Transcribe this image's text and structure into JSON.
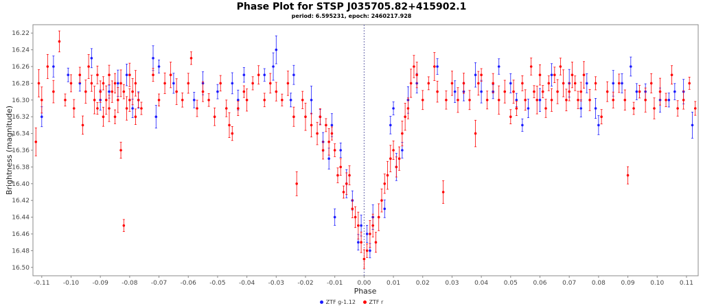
{
  "chart_data": {
    "type": "scatter",
    "title": "Phase Plot for STSP J035705.82+415902.1",
    "subtitle": "period: 6.595231, epoch: 2460217.928",
    "xlabel": "Phase",
    "ylabel": "Brightness (magnitude)",
    "xlim": [
      -0.113,
      0.114
    ],
    "ylim": [
      16.21,
      16.51
    ],
    "y_inverted": true,
    "x_ticks": [
      "-0.11",
      "-0.10",
      "-0.09",
      "-0.08",
      "-0.07",
      "-0.06",
      "-0.05",
      "-0.04",
      "-0.03",
      "-0.02",
      "-0.01",
      "0.00",
      "0.01",
      "0.02",
      "0.03",
      "0.04",
      "0.05",
      "0.06",
      "0.07",
      "0.08",
      "0.09",
      "0.10",
      "0.11"
    ],
    "y_ticks": [
      "16.22",
      "16.24",
      "16.26",
      "16.28",
      "16.30",
      "16.32",
      "16.34",
      "16.36",
      "16.38",
      "16.40",
      "16.42",
      "16.44",
      "16.46",
      "16.48",
      "16.50"
    ],
    "reference_line_x": 0.0,
    "legend_position": "bottom-center",
    "grid": false,
    "series": [
      {
        "name": "ZTF g-1.12",
        "color": "#1a1aff",
        "points": [
          [
            -0.11,
            16.32
          ],
          [
            -0.106,
            16.26
          ],
          [
            -0.101,
            16.27
          ],
          [
            -0.097,
            16.28
          ],
          [
            -0.093,
            16.25
          ],
          [
            -0.09,
            16.3
          ],
          [
            -0.087,
            16.29
          ],
          [
            -0.084,
            16.28
          ],
          [
            -0.081,
            16.27
          ],
          [
            -0.079,
            16.31
          ],
          [
            -0.077,
            16.3
          ],
          [
            -0.072,
            16.25
          ],
          [
            -0.071,
            16.32
          ],
          [
            -0.07,
            16.26
          ],
          [
            -0.065,
            16.28
          ],
          [
            -0.058,
            16.3
          ],
          [
            -0.055,
            16.28
          ],
          [
            -0.05,
            16.29
          ],
          [
            -0.045,
            16.28
          ],
          [
            -0.043,
            16.3
          ],
          [
            -0.041,
            16.27
          ],
          [
            -0.034,
            16.27
          ],
          [
            -0.031,
            16.26
          ],
          [
            -0.03,
            16.24
          ],
          [
            -0.025,
            16.3
          ],
          [
            -0.024,
            16.27
          ],
          [
            -0.018,
            16.3
          ],
          [
            -0.015,
            16.32
          ],
          [
            -0.014,
            16.35
          ],
          [
            -0.012,
            16.37
          ],
          [
            -0.011,
            16.33
          ],
          [
            -0.01,
            16.44
          ],
          [
            -0.008,
            16.36
          ],
          [
            -0.006,
            16.4
          ],
          [
            -0.004,
            16.42
          ],
          [
            -0.002,
            16.47
          ],
          [
            -0.001,
            16.45
          ],
          [
            0.001,
            16.46
          ],
          [
            0.002,
            16.48
          ],
          [
            0.003,
            16.44
          ],
          [
            0.007,
            16.43
          ],
          [
            0.009,
            16.33
          ],
          [
            0.01,
            16.31
          ],
          [
            0.011,
            16.38
          ],
          [
            0.013,
            16.36
          ],
          [
            0.015,
            16.3
          ],
          [
            0.018,
            16.28
          ],
          [
            0.025,
            16.26
          ],
          [
            0.031,
            16.29
          ],
          [
            0.034,
            16.29
          ],
          [
            0.038,
            16.27
          ],
          [
            0.04,
            16.29
          ],
          [
            0.044,
            16.29
          ],
          [
            0.046,
            16.26
          ],
          [
            0.05,
            16.28
          ],
          [
            0.052,
            16.3
          ],
          [
            0.054,
            16.33
          ],
          [
            0.056,
            16.31
          ],
          [
            0.06,
            16.3
          ],
          [
            0.064,
            16.27
          ],
          [
            0.07,
            16.28
          ],
          [
            0.074,
            16.31
          ],
          [
            0.076,
            16.28
          ],
          [
            0.079,
            16.31
          ],
          [
            0.08,
            16.33
          ],
          [
            0.085,
            16.28
          ],
          [
            0.088,
            16.28
          ],
          [
            0.091,
            16.26
          ],
          [
            0.093,
            16.29
          ],
          [
            0.096,
            16.29
          ],
          [
            0.101,
            16.3
          ],
          [
            0.104,
            16.3
          ],
          [
            0.106,
            16.29
          ],
          [
            0.109,
            16.29
          ],
          [
            0.112,
            16.33
          ]
        ]
      },
      {
        "name": "ZTF r",
        "color": "#ff0000",
        "points": [
          [
            -0.112,
            16.35
          ],
          [
            -0.111,
            16.28
          ],
          [
            -0.11,
            16.3
          ],
          [
            -0.108,
            16.26
          ],
          [
            -0.106,
            16.29
          ],
          [
            -0.104,
            16.23
          ],
          [
            -0.102,
            16.3
          ],
          [
            -0.1,
            16.28
          ],
          [
            -0.099,
            16.31
          ],
          [
            -0.097,
            16.27
          ],
          [
            -0.096,
            16.33
          ],
          [
            -0.095,
            16.29
          ],
          [
            -0.094,
            16.26
          ],
          [
            -0.093,
            16.28
          ],
          [
            -0.092,
            16.3
          ],
          [
            -0.091,
            16.31
          ],
          [
            -0.091,
            16.27
          ],
          [
            -0.09,
            16.29
          ],
          [
            -0.089,
            16.32
          ],
          [
            -0.089,
            16.28
          ],
          [
            -0.088,
            16.3
          ],
          [
            -0.087,
            16.27
          ],
          [
            -0.087,
            16.31
          ],
          [
            -0.086,
            16.29
          ],
          [
            -0.085,
            16.28
          ],
          [
            -0.085,
            16.32
          ],
          [
            -0.084,
            16.3
          ],
          [
            -0.083,
            16.28
          ],
          [
            -0.083,
            16.36
          ],
          [
            -0.082,
            16.45
          ],
          [
            -0.082,
            16.29
          ],
          [
            -0.081,
            16.31
          ],
          [
            -0.08,
            16.27
          ],
          [
            -0.08,
            16.3
          ],
          [
            -0.079,
            16.29
          ],
          [
            -0.078,
            16.32
          ],
          [
            -0.078,
            16.28
          ],
          [
            -0.077,
            16.3
          ],
          [
            -0.076,
            16.31
          ],
          [
            -0.072,
            16.27
          ],
          [
            -0.07,
            16.3
          ],
          [
            -0.068,
            16.28
          ],
          [
            -0.066,
            16.27
          ],
          [
            -0.064,
            16.29
          ],
          [
            -0.062,
            16.3
          ],
          [
            -0.06,
            16.28
          ],
          [
            -0.059,
            16.25
          ],
          [
            -0.057,
            16.31
          ],
          [
            -0.055,
            16.29
          ],
          [
            -0.053,
            16.3
          ],
          [
            -0.051,
            16.32
          ],
          [
            -0.049,
            16.28
          ],
          [
            -0.047,
            16.31
          ],
          [
            -0.046,
            16.33
          ],
          [
            -0.045,
            16.34
          ],
          [
            -0.043,
            16.31
          ],
          [
            -0.041,
            16.29
          ],
          [
            -0.04,
            16.3
          ],
          [
            -0.038,
            16.28
          ],
          [
            -0.036,
            16.27
          ],
          [
            -0.034,
            16.3
          ],
          [
            -0.032,
            16.28
          ],
          [
            -0.03,
            16.29
          ],
          [
            -0.028,
            16.3
          ],
          [
            -0.026,
            16.28
          ],
          [
            -0.024,
            16.32
          ],
          [
            -0.023,
            16.4
          ],
          [
            -0.021,
            16.3
          ],
          [
            -0.02,
            16.32
          ],
          [
            -0.018,
            16.33
          ],
          [
            -0.016,
            16.34
          ],
          [
            -0.015,
            16.32
          ],
          [
            -0.014,
            16.36
          ],
          [
            -0.013,
            16.33
          ],
          [
            -0.012,
            16.35
          ],
          [
            -0.011,
            16.34
          ],
          [
            -0.01,
            16.36
          ],
          [
            -0.009,
            16.39
          ],
          [
            -0.008,
            16.38
          ],
          [
            -0.007,
            16.41
          ],
          [
            -0.006,
            16.4
          ],
          [
            -0.005,
            16.39
          ],
          [
            -0.004,
            16.43
          ],
          [
            -0.003,
            16.44
          ],
          [
            -0.002,
            16.45
          ],
          [
            -0.001,
            16.47
          ],
          [
            0.0,
            16.49
          ],
          [
            0.001,
            16.48
          ],
          [
            0.002,
            16.46
          ],
          [
            0.003,
            16.45
          ],
          [
            0.004,
            16.47
          ],
          [
            0.005,
            16.44
          ],
          [
            0.006,
            16.42
          ],
          [
            0.007,
            16.4
          ],
          [
            0.008,
            16.39
          ],
          [
            0.009,
            16.37
          ],
          [
            0.01,
            16.36
          ],
          [
            0.011,
            16.38
          ],
          [
            0.012,
            16.37
          ],
          [
            0.013,
            16.34
          ],
          [
            0.014,
            16.32
          ],
          [
            0.015,
            16.31
          ],
          [
            0.016,
            16.28
          ],
          [
            0.017,
            16.26
          ],
          [
            0.018,
            16.27
          ],
          [
            0.02,
            16.3
          ],
          [
            0.022,
            16.28
          ],
          [
            0.024,
            16.26
          ],
          [
            0.025,
            16.29
          ],
          [
            0.027,
            16.41
          ],
          [
            0.028,
            16.3
          ],
          [
            0.03,
            16.28
          ],
          [
            0.032,
            16.3
          ],
          [
            0.034,
            16.28
          ],
          [
            0.036,
            16.3
          ],
          [
            0.038,
            16.34
          ],
          [
            0.039,
            16.28
          ],
          [
            0.04,
            16.27
          ],
          [
            0.042,
            16.3
          ],
          [
            0.044,
            16.28
          ],
          [
            0.046,
            16.3
          ],
          [
            0.048,
            16.29
          ],
          [
            0.05,
            16.32
          ],
          [
            0.051,
            16.29
          ],
          [
            0.052,
            16.31
          ],
          [
            0.054,
            16.28
          ],
          [
            0.055,
            16.3
          ],
          [
            0.057,
            16.26
          ],
          [
            0.058,
            16.29
          ],
          [
            0.059,
            16.3
          ],
          [
            0.06,
            16.27
          ],
          [
            0.061,
            16.29
          ],
          [
            0.062,
            16.31
          ],
          [
            0.063,
            16.28
          ],
          [
            0.064,
            16.3
          ],
          [
            0.065,
            16.27
          ],
          [
            0.066,
            16.29
          ],
          [
            0.067,
            16.26
          ],
          [
            0.068,
            16.28
          ],
          [
            0.069,
            16.3
          ],
          [
            0.07,
            16.29
          ],
          [
            0.071,
            16.27
          ],
          [
            0.072,
            16.28
          ],
          [
            0.073,
            16.3
          ],
          [
            0.074,
            16.29
          ],
          [
            0.075,
            16.27
          ],
          [
            0.077,
            16.3
          ],
          [
            0.079,
            16.28
          ],
          [
            0.081,
            16.32
          ],
          [
            0.083,
            16.29
          ],
          [
            0.085,
            16.3
          ],
          [
            0.087,
            16.28
          ],
          [
            0.089,
            16.3
          ],
          [
            0.09,
            16.39
          ],
          [
            0.092,
            16.31
          ],
          [
            0.094,
            16.29
          ],
          [
            0.096,
            16.3
          ],
          [
            0.098,
            16.28
          ],
          [
            0.099,
            16.31
          ],
          [
            0.101,
            16.29
          ],
          [
            0.103,
            16.3
          ],
          [
            0.105,
            16.27
          ],
          [
            0.107,
            16.31
          ],
          [
            0.109,
            16.3
          ],
          [
            0.111,
            16.28
          ],
          [
            0.113,
            16.31
          ]
        ]
      }
    ]
  }
}
